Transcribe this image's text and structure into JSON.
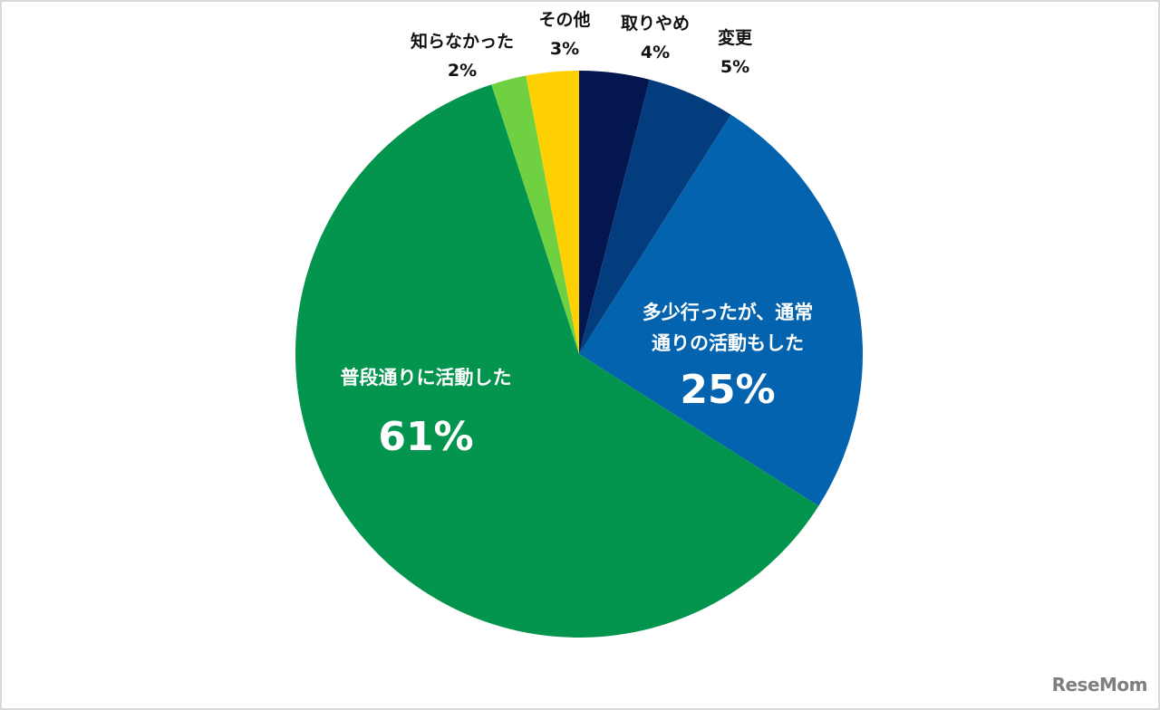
{
  "chart_data": {
    "type": "pie",
    "title": "",
    "start_angle_deg": 0,
    "direction": "clockwise",
    "slices": [
      {
        "label": "取りやめ",
        "value": 4,
        "display": "4%",
        "color": "#041650"
      },
      {
        "label": "変更",
        "value": 5,
        "display": "5%",
        "color": "#043D7E"
      },
      {
        "label": "多少行ったが、通常通りの活動もした",
        "value": 25,
        "display": "25%",
        "color": "#0463AE"
      },
      {
        "label": "普段通りに活動した",
        "value": 61,
        "display": "61%",
        "color": "#03954D"
      },
      {
        "label": "知らなかった",
        "value": 2,
        "display": "2%",
        "color": "#6FD142"
      },
      {
        "label": "その他",
        "value": 3,
        "display": "3%",
        "color": "#FFD102"
      }
    ]
  },
  "labels": {
    "torikyame": {
      "name": "取りやめ",
      "pct": "4%"
    },
    "henkou": {
      "name": "変更",
      "pct": "5%"
    },
    "tashou": {
      "line1": "多少行ったが、通常",
      "line2": "通りの活動もした",
      "pct": "25%"
    },
    "fudan": {
      "name": "普段通りに活動した",
      "pct": "61%"
    },
    "shiranakatta": {
      "name": "知らなかった",
      "pct": "2%"
    },
    "sonota": {
      "name": "その他",
      "pct": "3%"
    }
  },
  "watermark": "ReseMom"
}
